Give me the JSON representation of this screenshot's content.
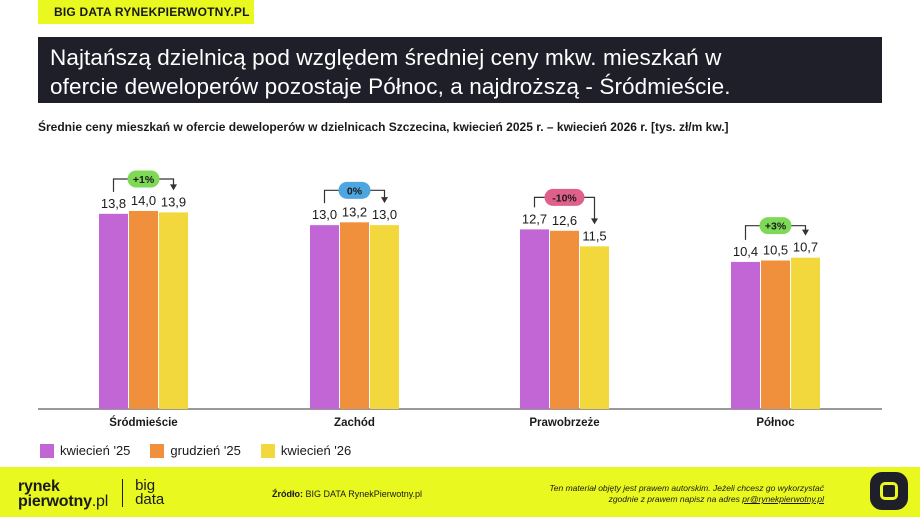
{
  "brand_tag": "BIG DATA RYNEKPIERWOTNY.PL",
  "headline": {
    "line1": "Najtańszą dzielnicą pod względem średniej ceny mkw. mieszkań w",
    "line2": "ofercie deweloperów pozostaje Północ, a najdroższą - Śródmieście."
  },
  "chart_data": {
    "type": "bar",
    "title": "Średnie ceny mieszkań w ofercie deweloperów w dzielnicach Szczecina, kwiecień 2025 r. – kwiecień 2026 r. [tys. zł/m kw.]",
    "categories": [
      "Śródmieście",
      "Zachód",
      "Prawobrzeże",
      "Północ"
    ],
    "series": [
      {
        "name": "kwiecień '25",
        "color": "#c266d6",
        "values": [
          13.8,
          13.0,
          12.7,
          10.4
        ],
        "labels": [
          "13,8",
          "13,0",
          "12,7",
          "10,4"
        ]
      },
      {
        "name": "grudzień '25",
        "color": "#f0903c",
        "values": [
          14.0,
          13.2,
          12.6,
          10.5
        ],
        "labels": [
          "14,0",
          "13,2",
          "12,6",
          "10,5"
        ]
      },
      {
        "name": "kwiecień '26",
        "color": "#f2d83c",
        "values": [
          13.9,
          13.0,
          11.5,
          10.7
        ],
        "labels": [
          "13,9",
          "13,0",
          "11,5",
          "10,7"
        ]
      }
    ],
    "changes": [
      {
        "label": "+1%",
        "color": "#7ed957"
      },
      {
        "label": "0%",
        "color": "#4ea6e0"
      },
      {
        "label": "-10%",
        "color": "#e0608c"
      },
      {
        "label": "+3%",
        "color": "#7ed957"
      }
    ],
    "ylim": [
      0,
      14.0
    ],
    "grid": false,
    "legend_position": "bottom-left"
  },
  "footer": {
    "logo_rynek": "rynek",
    "logo_pierwotny": "pierwotny",
    "logo_pl": ".pl",
    "logo_big": "big",
    "logo_data": "data",
    "source_label": "Źródło:",
    "source_text": "BIG DATA RynekPierwotny.pl",
    "copyright_line1": "Ten materiał objęty jest prawem autorskim. Jeżeli chcesz go wykorzystać",
    "copyright_line2": "zgodnie z prawem napisz na adres",
    "copyright_email": "pr@rynekpierwotny.pl"
  }
}
